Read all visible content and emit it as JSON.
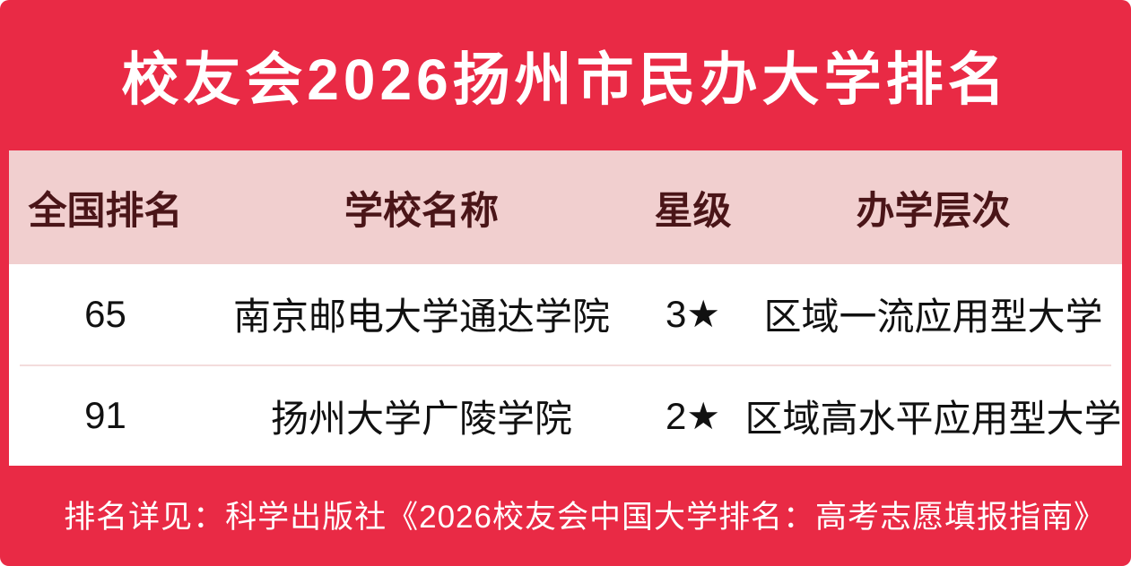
{
  "title": "校友会2026扬州市民办大学排名",
  "colors": {
    "accent": "#E92A45",
    "title_text": "#FFFFFF",
    "table_header_bg": "#F1CFCF",
    "table_header_text": "#4A1518",
    "body_text": "#111111",
    "divider": "#F3DCDC"
  },
  "table": {
    "columns": [
      "全国排名",
      "学校名称",
      "星级",
      "办学层次"
    ],
    "rows": [
      {
        "rank": "65",
        "school": "南京邮电大学通达学院",
        "stars": "3★",
        "level": "区域一流应用型大学"
      },
      {
        "rank": "91",
        "school": "扬州大学广陵学院",
        "stars": "2★",
        "level": "区域高水平应用型大学"
      }
    ]
  },
  "footer": "排名详见：科学出版社《2026校友会中国大学排名：高考志愿填报指南》",
  "chart_data": {
    "type": "table",
    "title": "校友会2026扬州市民办大学排名",
    "columns": [
      "全国排名",
      "学校名称",
      "星级",
      "办学层次"
    ],
    "rows": [
      [
        "65",
        "南京邮电大学通达学院",
        "3★",
        "区域一流应用型大学"
      ],
      [
        "91",
        "扬州大学广陵学院",
        "2★",
        "区域高水平应用型大学"
      ]
    ],
    "note": "排名详见：科学出版社《2026校友会中国大学排名：高考志愿填报指南》"
  }
}
